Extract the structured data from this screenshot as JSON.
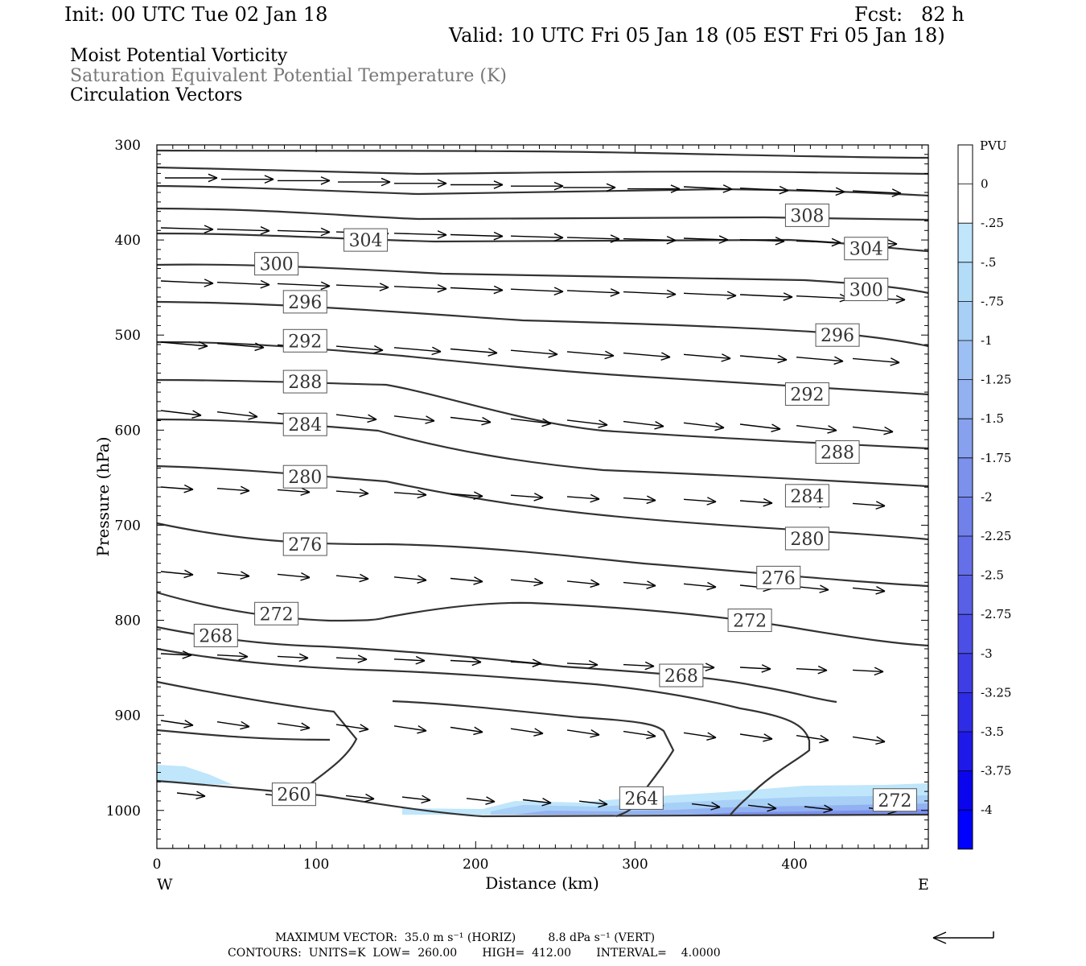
{
  "header": {
    "init": "Init: 00 UTC Tue 02 Jan 18",
    "fcst": "Fcst:   82 h",
    "valid": "Valid: 10 UTC Fri 05 Jan 18 (05 EST Fri 05 Jan 18)",
    "field1": "Moist Potential Vorticity",
    "field2": "Saturation Equivalent Potential Temperature (K)",
    "field3": "Circulation Vectors"
  },
  "footer": {
    "max_vector": "MAXIMUM VECTOR:  35.0 m s⁻¹ (HORIZ)         8.8 dPa s⁻¹ (VERT)",
    "contours": "CONTOURS:  UNITS=K  LOW=  260.00       HIGH=  412.00       INTERVAL=    4.0000"
  },
  "chart_data": {
    "type": "cross-section",
    "xlabel": "Distance (km)",
    "ylabel": "Pressure (hPa)",
    "x_ticks": [
      0,
      100,
      200,
      300,
      400
    ],
    "y_ticks": [
      300,
      400,
      500,
      600,
      700,
      800,
      900,
      1000
    ],
    "xlim": [
      0,
      484
    ],
    "ylim": [
      1040,
      300
    ],
    "x_end_labels": {
      "left": "W",
      "right": "E"
    },
    "colorbar": {
      "unit": "PVU",
      "labels": [
        "0",
        "-.25",
        "-.5",
        "-.75",
        "-1",
        "-1.25",
        "-1.5",
        "-1.75",
        "-2",
        "-2.25",
        "-2.5",
        "-2.75",
        "-3",
        "-3.25",
        "-3.5",
        "-3.75",
        "-4"
      ],
      "colors": [
        "#ffffff",
        "#ffffff",
        "#bfe6fb",
        "#b3dcf8",
        "#a8cff6",
        "#9dc0f4",
        "#92b1f1",
        "#87a1ee",
        "#7c91ec",
        "#7181ea",
        "#6570e8",
        "#5960e6",
        "#4c4fe5",
        "#3e3ee4",
        "#2f2ce6",
        "#1e19e9",
        "#0b05ed",
        "#0000ff"
      ]
    },
    "contour_labels": [
      {
        "text": "308",
        "x": 408,
        "p": 374
      },
      {
        "text": "304",
        "x": 131,
        "p": 400
      },
      {
        "text": "304",
        "x": 445,
        "p": 409
      },
      {
        "text": "300",
        "x": 75,
        "p": 425
      },
      {
        "text": "300",
        "x": 445,
        "p": 452
      },
      {
        "text": "296",
        "x": 93,
        "p": 465
      },
      {
        "text": "296",
        "x": 427,
        "p": 500
      },
      {
        "text": "292",
        "x": 93,
        "p": 506
      },
      {
        "text": "292",
        "x": 408,
        "p": 562
      },
      {
        "text": "288",
        "x": 93,
        "p": 549
      },
      {
        "text": "288",
        "x": 427,
        "p": 623
      },
      {
        "text": "284",
        "x": 93,
        "p": 594
      },
      {
        "text": "284",
        "x": 408,
        "p": 669
      },
      {
        "text": "280",
        "x": 93,
        "p": 649
      },
      {
        "text": "280",
        "x": 408,
        "p": 714
      },
      {
        "text": "276",
        "x": 93,
        "p": 720
      },
      {
        "text": "276",
        "x": 390,
        "p": 755
      },
      {
        "text": "272",
        "x": 75,
        "p": 793
      },
      {
        "text": "272",
        "x": 372,
        "p": 800
      },
      {
        "text": "268",
        "x": 37,
        "p": 816
      },
      {
        "text": "268",
        "x": 329,
        "p": 858
      },
      {
        "text": "260",
        "x": 86,
        "p": 983
      },
      {
        "text": "264",
        "x": 304,
        "p": 987
      },
      {
        "text": "272",
        "x": 463,
        "p": 989
      }
    ]
  }
}
